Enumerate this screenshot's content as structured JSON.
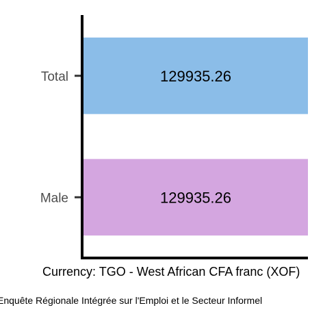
{
  "chart_data": {
    "type": "bar",
    "orientation": "horizontal",
    "categories": [
      "Total",
      "Male"
    ],
    "values": [
      129935.26,
      129935.26
    ],
    "data_labels": [
      "129935.26",
      "129935.26"
    ],
    "bar_colors": [
      "#8bbde8",
      "#d4a6e0"
    ],
    "title": "",
    "xlabel": "Currency: TGO - West African CFA franc (XOF)",
    "ylabel": "",
    "xlim": [
      0,
      129935.26
    ],
    "grid": false,
    "legend": "none"
  },
  "caption": "Enquête Régionale Intégrée sur l'Emploi et le Secteur Informel"
}
